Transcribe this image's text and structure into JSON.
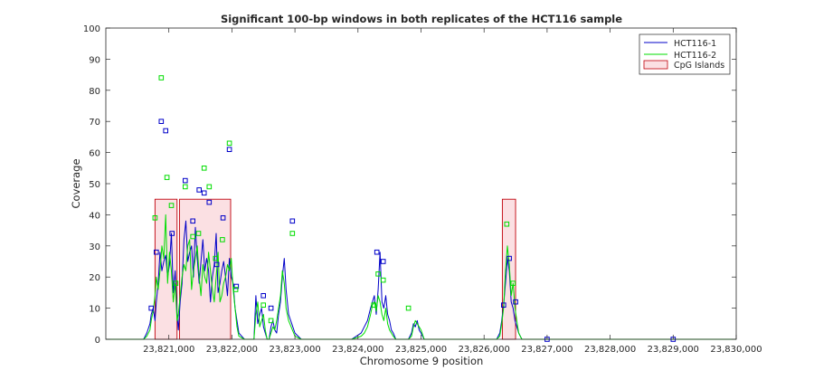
{
  "chart_data": {
    "type": "line",
    "title": "Significant 100-bp windows in both replicates of the HCT116 sample",
    "xlabel": "Chromosome 9 position",
    "ylabel": "Coverage",
    "xlim": [
      23820000,
      23830000
    ],
    "ylim": [
      0,
      100
    ],
    "x_ticks": [
      23821000,
      23822000,
      23823000,
      23824000,
      23825000,
      23826000,
      23827000,
      23828000,
      23829000,
      23830000
    ],
    "x_tick_labels": [
      "23,821,000",
      "23,822,000",
      "23,823,000",
      "23,824,000",
      "23,825,000",
      "23,826,000",
      "23,827,000",
      "23,828,000",
      "23,829,000",
      "23,830,000"
    ],
    "y_ticks": [
      0,
      10,
      20,
      30,
      40,
      50,
      60,
      70,
      80,
      90,
      100
    ],
    "legend": {
      "position": "top-right",
      "entries": [
        "HCT116-1",
        "HCT116-2",
        "CpG Islands"
      ]
    },
    "colors": {
      "rep1": "#0000c8",
      "rep2": "#00dd00",
      "cpg_edge": "#c0000a",
      "cpg_fill": "#fbe0e3"
    },
    "cpg_islands": [
      {
        "start": 23820780,
        "end": 23821130,
        "height": 45
      },
      {
        "start": 23821170,
        "end": 23821980,
        "height": 45
      },
      {
        "start": 23826290,
        "end": 23826500,
        "height": 45
      }
    ],
    "series": [
      {
        "name": "HCT116-1",
        "x": [
          23820000,
          23820600,
          23820650,
          23820700,
          23820720,
          23820750,
          23820780,
          23820800,
          23820830,
          23820860,
          23820890,
          23820920,
          23820950,
          23820980,
          23821010,
          23821040,
          23821070,
          23821100,
          23821130,
          23821150,
          23821180,
          23821210,
          23821240,
          23821270,
          23821300,
          23821330,
          23821360,
          23821390,
          23821420,
          23821450,
          23821480,
          23821510,
          23821540,
          23821570,
          23821600,
          23821630,
          23821660,
          23821690,
          23821720,
          23821750,
          23821780,
          23821810,
          23821840,
          23821870,
          23821900,
          23821930,
          23821960,
          23821990,
          23822020,
          23822050,
          23822080,
          23822110,
          23822200,
          23822350,
          23822380,
          23822410,
          23822440,
          23822470,
          23822500,
          23822530,
          23822560,
          23822590,
          23822620,
          23822650,
          23822680,
          23822710,
          23822740,
          23822770,
          23822800,
          23822830,
          23822860,
          23822900,
          23823000,
          23823100,
          23823500,
          23823900,
          23824050,
          23824100,
          23824150,
          23824200,
          23824230,
          23824260,
          23824290,
          23824320,
          23824350,
          23824380,
          23824410,
          23824440,
          23824470,
          23824500,
          23824530,
          23824560,
          23824600,
          23824700,
          23824800,
          23824850,
          23824880,
          23824910,
          23824940,
          23824970,
          23825000,
          23825050,
          23825200,
          23825500,
          23826000,
          23826200,
          23826250,
          23826280,
          23826310,
          23826340,
          23826370,
          23826400,
          23826430,
          23826460,
          23826490,
          23826520,
          23826550,
          23826600,
          23827000,
          23830000
        ],
        "y": [
          0,
          0,
          2,
          5,
          8,
          10,
          6,
          12,
          18,
          28,
          22,
          25,
          27,
          20,
          24,
          34,
          15,
          22,
          8,
          3,
          12,
          18,
          32,
          38,
          25,
          28,
          30,
          20,
          36,
          26,
          18,
          25,
          32,
          22,
          26,
          22,
          12,
          20,
          24,
          34,
          15,
          18,
          22,
          25,
          20,
          14,
          26,
          20,
          18,
          10,
          6,
          2,
          0,
          0,
          14,
          5,
          8,
          10,
          4,
          2,
          0,
          0,
          4,
          6,
          3,
          2,
          8,
          12,
          20,
          26,
          16,
          8,
          2,
          0,
          0,
          0,
          2,
          4,
          6,
          10,
          12,
          14,
          8,
          16,
          28,
          12,
          10,
          14,
          8,
          6,
          3,
          2,
          0,
          0,
          0,
          2,
          5,
          4,
          6,
          3,
          2,
          0,
          0,
          0,
          0,
          0,
          2,
          6,
          11,
          18,
          26,
          22,
          12,
          10,
          6,
          4,
          2,
          0,
          0,
          0
        ]
      },
      {
        "name": "HCT116-2",
        "x": [
          23820000,
          23820600,
          23820650,
          23820700,
          23820720,
          23820750,
          23820780,
          23820800,
          23820830,
          23820860,
          23820890,
          23820920,
          23820950,
          23820980,
          23821010,
          23821040,
          23821070,
          23821100,
          23821130,
          23821150,
          23821180,
          23821210,
          23821240,
          23821270,
          23821300,
          23821330,
          23821360,
          23821390,
          23821420,
          23821450,
          23821480,
          23821510,
          23821540,
          23821570,
          23821600,
          23821630,
          23821660,
          23821690,
          23821720,
          23821750,
          23821780,
          23821810,
          23821840,
          23821870,
          23821900,
          23821930,
          23821960,
          23821990,
          23822020,
          23822050,
          23822080,
          23822110,
          23822200,
          23822350,
          23822380,
          23822410,
          23822440,
          23822470,
          23822500,
          23822530,
          23822560,
          23822590,
          23822620,
          23822650,
          23822680,
          23822710,
          23822740,
          23822770,
          23822800,
          23822830,
          23822860,
          23822900,
          23823000,
          23823100,
          23823500,
          23823900,
          23824050,
          23824100,
          23824150,
          23824200,
          23824230,
          23824260,
          23824290,
          23824320,
          23824350,
          23824380,
          23824410,
          23824440,
          23824470,
          23824500,
          23824530,
          23824560,
          23824600,
          23824700,
          23824800,
          23824850,
          23824880,
          23824910,
          23824940,
          23824970,
          23825000,
          23825050,
          23825200,
          23825500,
          23826000,
          23826200,
          23826250,
          23826280,
          23826310,
          23826340,
          23826370,
          23826400,
          23826430,
          23826460,
          23826490,
          23826520,
          23826550,
          23826600,
          23827000,
          23830000
        ],
        "y": [
          0,
          0,
          1,
          3,
          6,
          9,
          14,
          20,
          16,
          22,
          30,
          26,
          40,
          18,
          28,
          22,
          12,
          18,
          6,
          8,
          14,
          20,
          24,
          22,
          30,
          32,
          16,
          22,
          26,
          30,
          20,
          14,
          24,
          20,
          18,
          28,
          22,
          16,
          12,
          20,
          28,
          12,
          14,
          18,
          20,
          24,
          22,
          26,
          16,
          10,
          4,
          1,
          0,
          0,
          8,
          12,
          4,
          6,
          8,
          3,
          0,
          0,
          2,
          4,
          3,
          6,
          10,
          14,
          22,
          18,
          10,
          6,
          1,
          0,
          0,
          0,
          1,
          2,
          4,
          8,
          11,
          12,
          9,
          14,
          12,
          8,
          6,
          10,
          5,
          3,
          2,
          1,
          0,
          0,
          0,
          1,
          4,
          6,
          5,
          4,
          3,
          0,
          0,
          0,
          0,
          0,
          1,
          5,
          10,
          22,
          30,
          24,
          14,
          18,
          10,
          6,
          2,
          0,
          0,
          0
        ]
      }
    ],
    "markers": {
      "HCT116-1": [
        [
          23820720,
          10
        ],
        [
          23820800,
          28
        ],
        [
          23820880,
          70
        ],
        [
          23820950,
          67
        ],
        [
          23821050,
          34
        ],
        [
          23821260,
          51
        ],
        [
          23821380,
          38
        ],
        [
          23821480,
          48
        ],
        [
          23821560,
          47
        ],
        [
          23821640,
          44
        ],
        [
          23821760,
          24
        ],
        [
          23821860,
          39
        ],
        [
          23821960,
          61
        ],
        [
          23822070,
          17
        ],
        [
          23822500,
          14
        ],
        [
          23822620,
          10
        ],
        [
          23822960,
          38
        ],
        [
          23824300,
          28
        ],
        [
          23824400,
          25
        ],
        [
          23826310,
          11
        ],
        [
          23826400,
          26
        ],
        [
          23826500,
          12
        ],
        [
          23827000,
          0
        ],
        [
          23829000,
          0
        ]
      ],
      "HCT116-2": [
        [
          23820780,
          39
        ],
        [
          23820880,
          84
        ],
        [
          23820970,
          52
        ],
        [
          23821040,
          43
        ],
        [
          23821110,
          18
        ],
        [
          23821260,
          49
        ],
        [
          23821380,
          33
        ],
        [
          23821470,
          34
        ],
        [
          23821560,
          55
        ],
        [
          23821640,
          49
        ],
        [
          23821740,
          26
        ],
        [
          23821850,
          32
        ],
        [
          23821960,
          63
        ],
        [
          23822060,
          16
        ],
        [
          23822500,
          11
        ],
        [
          23822620,
          6
        ],
        [
          23822960,
          34
        ],
        [
          23824250,
          11
        ],
        [
          23824320,
          21
        ],
        [
          23824400,
          19
        ],
        [
          23824800,
          10
        ],
        [
          23826360,
          37
        ],
        [
          23826460,
          18
        ]
      ]
    }
  }
}
